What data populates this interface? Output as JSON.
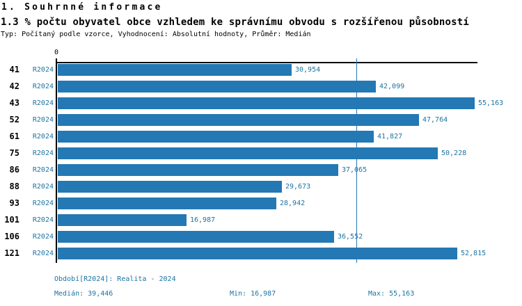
{
  "header": {
    "title": "1. Souhrnné informace",
    "subtitle": "1.3 % počtu obyvatel obce vzhledem ke správnímu obvodu s rozšířenou působností",
    "meta": "Typ: Počítaný podle vzorce, Vyhodnocení: Absolutní hodnoty, Průměr: Medián"
  },
  "chart_data": {
    "type": "bar",
    "orientation": "horizontal",
    "title": "1.3 % počtu obyvatel obce vzhledem ke správnímu obvodu s rozšířenou působností",
    "categories": [
      "41",
      "42",
      "43",
      "52",
      "61",
      "75",
      "86",
      "88",
      "93",
      "101",
      "106",
      "121"
    ],
    "series_label": "R2024",
    "values": [
      30954,
      42099,
      55163,
      47764,
      41827,
      50228,
      37065,
      29673,
      28942,
      16987,
      36552,
      52815
    ],
    "value_labels": [
      "30,954",
      "42,099",
      "55,163",
      "47,764",
      "41,827",
      "50,228",
      "37,065",
      "29,673",
      "28,942",
      "16,987",
      "36,552",
      "52,815"
    ],
    "xlim": [
      0,
      55500
    ],
    "x_tick_labels": [
      "0"
    ],
    "zero_tick_label": "0",
    "median": 39446,
    "min": 16987,
    "max": 55163,
    "grid": false,
    "legend": false,
    "bar_color": "#2478b4",
    "median_line_color": "#2478b4",
    "label_color": "#1b73a1",
    "axis_color": "#000000"
  },
  "footer": {
    "period_line": "Období[R2024]: Realita - 2024",
    "median_label": "Medián: 39,446",
    "min_label": "Min: 16,987",
    "max_label": "Max: 55,163"
  }
}
